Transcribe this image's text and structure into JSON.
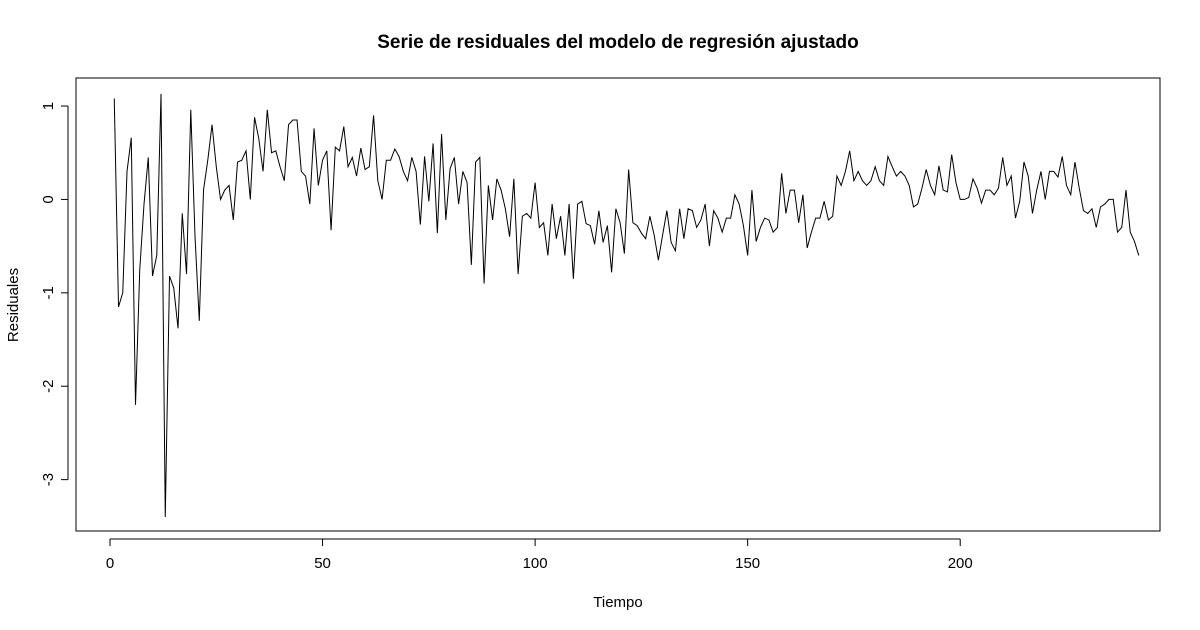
{
  "chart_data": {
    "type": "line",
    "title": "Serie de residuales del modelo de regresión ajustado",
    "xlabel": "Tiempo",
    "ylabel": "Residuales",
    "xlim": [
      -8,
      247
    ],
    "ylim": [
      -3.55,
      1.3
    ],
    "x_ticks": [
      0,
      50,
      100,
      150,
      200
    ],
    "y_ticks": [
      -3,
      -2,
      -1,
      0,
      1
    ],
    "line_color": "#000000",
    "grid": false,
    "series": [
      {
        "x_start": 1,
        "values": [
          1.08,
          -1.15,
          -1.0,
          0.3,
          0.66,
          -2.2,
          -0.75,
          -0.05,
          0.45,
          -0.82,
          -0.6,
          1.13,
          -3.4,
          -0.82,
          -0.95,
          -1.38,
          -0.15,
          -0.8,
          0.96,
          -0.4,
          -1.3,
          0.1,
          0.42,
          0.8,
          0.35,
          0.0,
          0.1,
          0.15,
          -0.22,
          0.4,
          0.42,
          0.52,
          0.0,
          0.88,
          0.65,
          0.3,
          0.96,
          0.5,
          0.52,
          0.35,
          0.2,
          0.8,
          0.85,
          0.85,
          0.3,
          0.25,
          -0.05,
          0.76,
          0.15,
          0.42,
          0.52,
          -0.33,
          0.56,
          0.52,
          0.78,
          0.35,
          0.45,
          0.25,
          0.55,
          0.32,
          0.35,
          0.9,
          0.2,
          0.0,
          0.42,
          0.42,
          0.54,
          0.46,
          0.3,
          0.2,
          0.45,
          0.3,
          -0.27,
          0.46,
          -0.02,
          0.6,
          -0.36,
          0.7,
          -0.22,
          0.33,
          0.45,
          -0.05,
          0.3,
          0.18,
          -0.7,
          0.4,
          0.45,
          -0.9,
          0.15,
          -0.22,
          0.22,
          0.1,
          -0.1,
          -0.4,
          0.22,
          -0.8,
          -0.18,
          -0.15,
          -0.2,
          0.18,
          -0.3,
          -0.25,
          -0.6,
          -0.05,
          -0.42,
          -0.18,
          -0.6,
          -0.05,
          -0.85,
          -0.05,
          -0.02,
          -0.26,
          -0.28,
          -0.48,
          -0.12,
          -0.46,
          -0.28,
          -0.78,
          -0.1,
          -0.25,
          -0.58,
          0.32,
          -0.25,
          -0.28,
          -0.36,
          -0.42,
          -0.18,
          -0.38,
          -0.65,
          -0.38,
          -0.12,
          -0.46,
          -0.55,
          -0.1,
          -0.42,
          -0.1,
          -0.12,
          -0.3,
          -0.22,
          -0.05,
          -0.5,
          -0.12,
          -0.2,
          -0.35,
          -0.2,
          -0.2,
          0.05,
          -0.05,
          -0.28,
          -0.6,
          0.1,
          -0.45,
          -0.3,
          -0.2,
          -0.22,
          -0.35,
          -0.3,
          0.28,
          -0.15,
          0.1,
          0.1,
          -0.25,
          0.05,
          -0.52,
          -0.35,
          -0.2,
          -0.2,
          -0.02,
          -0.22,
          -0.18,
          0.25,
          0.15,
          0.3,
          0.52,
          0.2,
          0.3,
          0.2,
          0.15,
          0.2,
          0.35,
          0.2,
          0.15,
          0.46,
          0.35,
          0.25,
          0.3,
          0.25,
          0.15,
          -0.08,
          -0.05,
          0.12,
          0.32,
          0.15,
          0.05,
          0.36,
          0.1,
          0.08,
          0.48,
          0.18,
          0.0,
          0.0,
          0.02,
          0.22,
          0.12,
          -0.04,
          0.1,
          0.1,
          0.05,
          0.12,
          0.45,
          0.15,
          0.25,
          -0.2,
          -0.02,
          0.4,
          0.25,
          -0.15,
          0.1,
          0.3,
          0.0,
          0.3,
          0.3,
          0.24,
          0.46,
          0.15,
          0.05,
          0.4,
          0.12,
          -0.12,
          -0.15,
          -0.1,
          -0.3,
          -0.08,
          -0.05,
          0.0,
          0.0,
          -0.35,
          -0.3,
          0.1,
          -0.35,
          -0.45,
          -0.6
        ]
      }
    ]
  }
}
